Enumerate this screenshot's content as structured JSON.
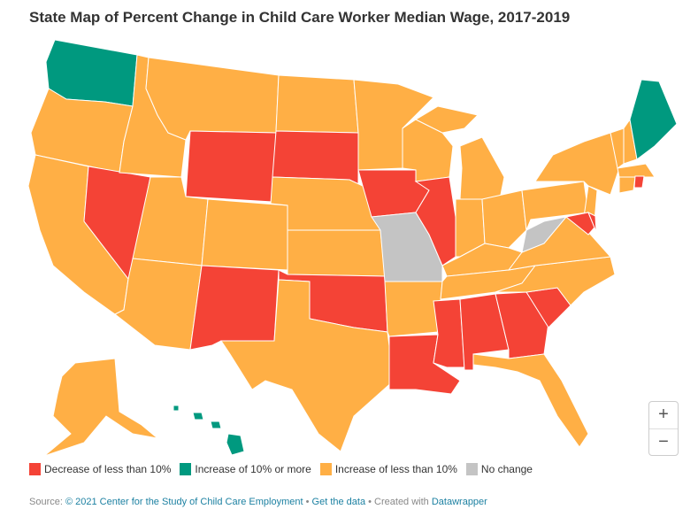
{
  "title": "State Map of Percent Change in Child Care Worker Median Wage, 2017-2019",
  "colors": {
    "decrease_lt_10": "#f44336",
    "increase_10_plus": "#00997f",
    "increase_lt_10": "#ffaf45",
    "no_change": "#c4c4c4"
  },
  "legend": [
    {
      "key": "decrease_lt_10",
      "label": "Decrease of less than 10%"
    },
    {
      "key": "increase_10_plus",
      "label": "Increase of 10% or more"
    },
    {
      "key": "increase_lt_10",
      "label": "Increase of less than 10%"
    },
    {
      "key": "no_change",
      "label": "No change"
    }
  ],
  "states": {
    "WA": "increase_10_plus",
    "OR": "increase_lt_10",
    "CA": "increase_lt_10",
    "NV": "decrease_lt_10",
    "ID": "increase_lt_10",
    "MT": "increase_lt_10",
    "WY": "decrease_lt_10",
    "UT": "increase_lt_10",
    "AZ": "increase_lt_10",
    "CO": "increase_lt_10",
    "NM": "decrease_lt_10",
    "ND": "increase_lt_10",
    "SD": "decrease_lt_10",
    "NE": "increase_lt_10",
    "KS": "increase_lt_10",
    "OK": "decrease_lt_10",
    "TX": "increase_lt_10",
    "MN": "increase_lt_10",
    "IA": "decrease_lt_10",
    "MO": "no_change",
    "AR": "increase_lt_10",
    "LA": "decrease_lt_10",
    "WI": "increase_lt_10",
    "IL": "decrease_lt_10",
    "MI": "increase_lt_10",
    "IN": "increase_lt_10",
    "OH": "increase_lt_10",
    "KY": "increase_lt_10",
    "TN": "increase_lt_10",
    "MS": "decrease_lt_10",
    "AL": "decrease_lt_10",
    "GA": "decrease_lt_10",
    "FL": "increase_lt_10",
    "SC": "decrease_lt_10",
    "NC": "increase_lt_10",
    "VA": "increase_lt_10",
    "WV": "no_change",
    "PA": "increase_lt_10",
    "NY": "increase_lt_10",
    "NJ": "increase_lt_10",
    "MD": "decrease_lt_10",
    "DE": "decrease_lt_10",
    "VT": "increase_lt_10",
    "NH": "increase_lt_10",
    "ME": "increase_10_plus",
    "MA": "increase_lt_10",
    "CT": "increase_lt_10",
    "RI": "decrease_lt_10",
    "AK": "increase_lt_10",
    "HI": "increase_10_plus"
  },
  "zoom_controls": {
    "in": "+",
    "out": "−"
  },
  "footer": {
    "source_label": "Source:",
    "source_link": "© 2021 Center for the Study of Child Care Employment",
    "sep1": " • ",
    "get_data": "Get the data",
    "sep2": " • Created with ",
    "datawrapper": "Datawrapper"
  }
}
